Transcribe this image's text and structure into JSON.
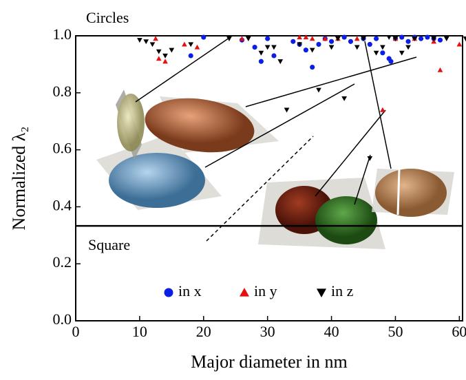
{
  "chart_data": {
    "type": "scatter",
    "x_label": "Major diameter in nm",
    "y_label": "Normalized λ₂",
    "annotations": [
      "Circles",
      "Square"
    ],
    "reference_line": 0.333,
    "xlim": [
      0,
      60.5
    ],
    "xticks": [
      0,
      10,
      20,
      30,
      40,
      50,
      60
    ],
    "ylim": [
      0,
      1
    ],
    "yticks": [
      {
        "value": 0,
        "label": "0.0"
      },
      0.2,
      0.4,
      0.6,
      0.8,
      {
        "value": 1,
        "label": "1.0"
      }
    ],
    "legend": "bottom",
    "series": [
      {
        "name": "in x",
        "color": "#0a1ee6",
        "marker": "circle",
        "x": [
          18,
          20,
          26,
          28,
          29,
          30,
          31,
          34,
          35,
          36,
          37,
          38,
          39,
          40,
          42,
          43,
          45,
          46,
          47,
          48,
          49,
          49.3,
          50,
          51,
          52,
          53,
          54,
          55,
          56,
          57
        ],
        "values": [
          0.93,
          0.995,
          0.985,
          0.96,
          0.91,
          0.99,
          0.93,
          0.98,
          0.97,
          0.95,
          0.89,
          0.97,
          0.99,
          0.98,
          0.995,
          0.98,
          0.99,
          0.97,
          0.99,
          0.94,
          0.92,
          0.91,
          0.99,
          0.995,
          0.98,
          0.995,
          0.99,
          0.995,
          0.99,
          0.985
        ]
      },
      {
        "name": "in y",
        "color": "#e61010",
        "marker": "triangle-up",
        "x": [
          12.5,
          13,
          14,
          17,
          19,
          26,
          35,
          36,
          37,
          39,
          41,
          44,
          48,
          50,
          53,
          56,
          57,
          60
        ],
        "values": [
          0.99,
          0.92,
          0.91,
          0.97,
          0.96,
          0.99,
          0.995,
          0.995,
          0.99,
          0.99,
          0.99,
          0.99,
          0.74,
          0.99,
          0.99,
          0.98,
          0.88,
          0.97
        ]
      },
      {
        "name": "in z",
        "color": "#000000",
        "marker": "triangle-down",
        "x": [
          10,
          11,
          12,
          13,
          14,
          15,
          18,
          24,
          27,
          29,
          30,
          31,
          32,
          33,
          35,
          37,
          38,
          40,
          41,
          42,
          44,
          45,
          46,
          47,
          48,
          49,
          50,
          51,
          52,
          53,
          56,
          58,
          61
        ],
        "values": [
          0.985,
          0.98,
          0.97,
          0.945,
          0.93,
          0.95,
          0.97,
          0.99,
          0.99,
          0.94,
          0.96,
          0.96,
          0.91,
          0.74,
          0.97,
          0.95,
          0.81,
          0.96,
          0.99,
          0.78,
          0.96,
          0.99,
          0.57,
          0.94,
          0.96,
          0.995,
          0.99,
          0.94,
          0.96,
          0.99,
          0.99,
          0.99,
          0.99
        ]
      }
    ]
  }
}
